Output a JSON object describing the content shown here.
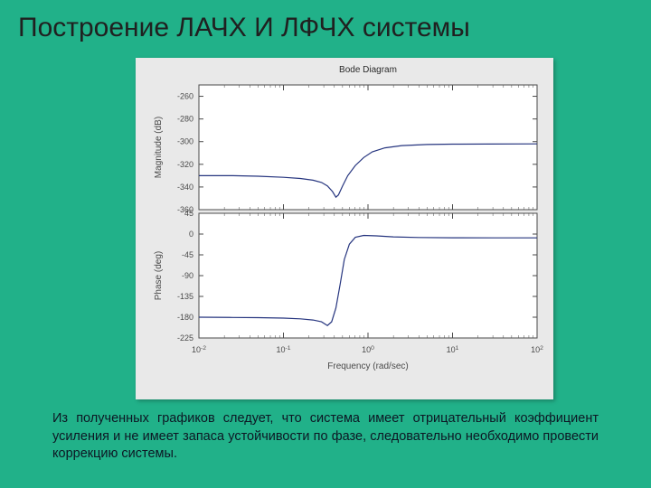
{
  "title": "Построение ЛАЧХ  И ЛФЧХ системы",
  "paragraph": "Из полученных графиков следует, что система имеет отрицательный коэффициент усиления и не имеет запаса устойчивости по фазе, следовательно необходимо провести коррекцию системы.",
  "figure": {
    "bg": "#e9e9e9",
    "plot_bg": "#ffffff",
    "axis_color": "#4a4a4a",
    "title": "Bode Diagram",
    "title_fontsize": 10,
    "xlabel": "Frequency  (rad/sec)",
    "label_fontsize": 10,
    "tick_fontsize": 9,
    "curve_color": "#26357f",
    "x_log_min": -2,
    "x_log_max": 2,
    "x_ticks": [
      -2,
      -1,
      0,
      1,
      2
    ],
    "magnitude": {
      "ylabel": "Magnitude (dB)",
      "ymin": -360,
      "ymax": -250,
      "yticks": [
        -360,
        -340,
        -320,
        -300,
        -280,
        -260
      ],
      "points": [
        [
          -2.0,
          -330
        ],
        [
          -1.6,
          -330
        ],
        [
          -1.3,
          -330.5
        ],
        [
          -1.0,
          -331.5
        ],
        [
          -0.8,
          -332.5
        ],
        [
          -0.65,
          -334
        ],
        [
          -0.55,
          -336
        ],
        [
          -0.48,
          -339
        ],
        [
          -0.42,
          -344
        ],
        [
          -0.38,
          -349
        ],
        [
          -0.35,
          -347
        ],
        [
          -0.3,
          -339
        ],
        [
          -0.24,
          -330
        ],
        [
          -0.15,
          -321
        ],
        [
          -0.05,
          -314
        ],
        [
          0.05,
          -309
        ],
        [
          0.2,
          -305.5
        ],
        [
          0.4,
          -303.5
        ],
        [
          0.7,
          -302.5
        ],
        [
          1.0,
          -302.2
        ],
        [
          1.4,
          -302.1
        ],
        [
          2.0,
          -302.0
        ]
      ]
    },
    "phase": {
      "ylabel": "Phase (deg)",
      "ymin": -225,
      "ymax": 45,
      "yticks": [
        -225,
        -180,
        -135,
        -90,
        -45,
        0,
        45
      ],
      "points": [
        [
          -2.0,
          -180
        ],
        [
          -1.6,
          -180.5
        ],
        [
          -1.3,
          -181
        ],
        [
          -1.0,
          -182
        ],
        [
          -0.8,
          -183.5
        ],
        [
          -0.65,
          -186
        ],
        [
          -0.55,
          -190
        ],
        [
          -0.48,
          -198
        ],
        [
          -0.43,
          -190
        ],
        [
          -0.38,
          -160
        ],
        [
          -0.33,
          -110
        ],
        [
          -0.28,
          -55
        ],
        [
          -0.22,
          -22
        ],
        [
          -0.15,
          -7
        ],
        [
          -0.05,
          -3
        ],
        [
          0.1,
          -4
        ],
        [
          0.3,
          -6
        ],
        [
          0.6,
          -7.5
        ],
        [
          1.0,
          -8
        ],
        [
          1.5,
          -8.2
        ],
        [
          2.0,
          -8.3
        ]
      ]
    }
  }
}
